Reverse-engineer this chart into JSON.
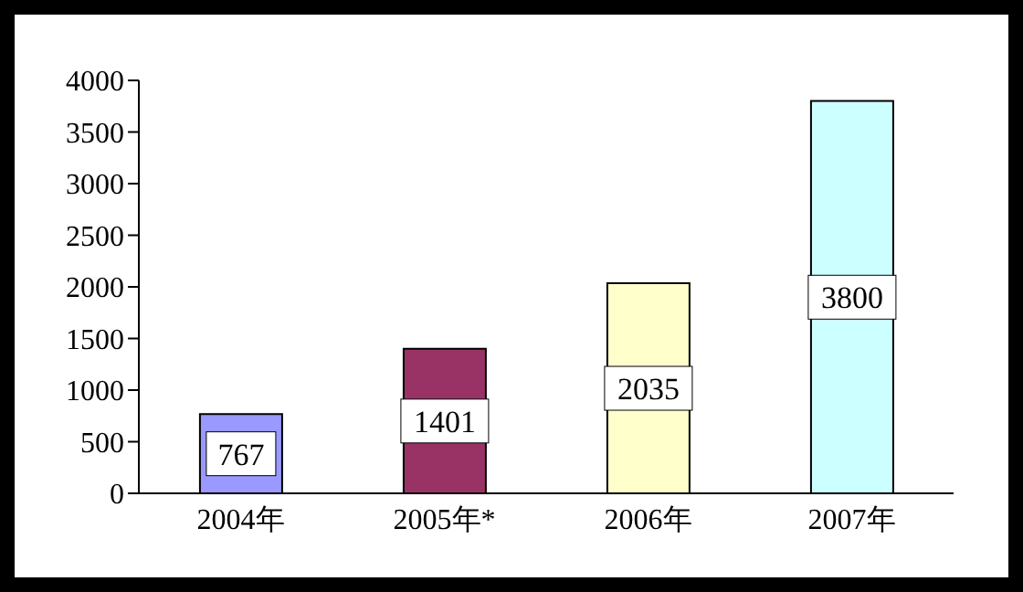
{
  "chart_data": {
    "type": "bar",
    "categories": [
      "2004年",
      "2005年*",
      "2006年",
      "2007年"
    ],
    "values": [
      767,
      1401,
      2035,
      3800
    ],
    "colors": [
      "#9999ff",
      "#993366",
      "#ffffcc",
      "#ccffff"
    ],
    "ylim": [
      0,
      4000
    ],
    "yticks": [
      0,
      500,
      1000,
      1500,
      2000,
      2500,
      3000,
      3500,
      4000
    ],
    "grid": false,
    "legend": false,
    "data_labels": true
  }
}
